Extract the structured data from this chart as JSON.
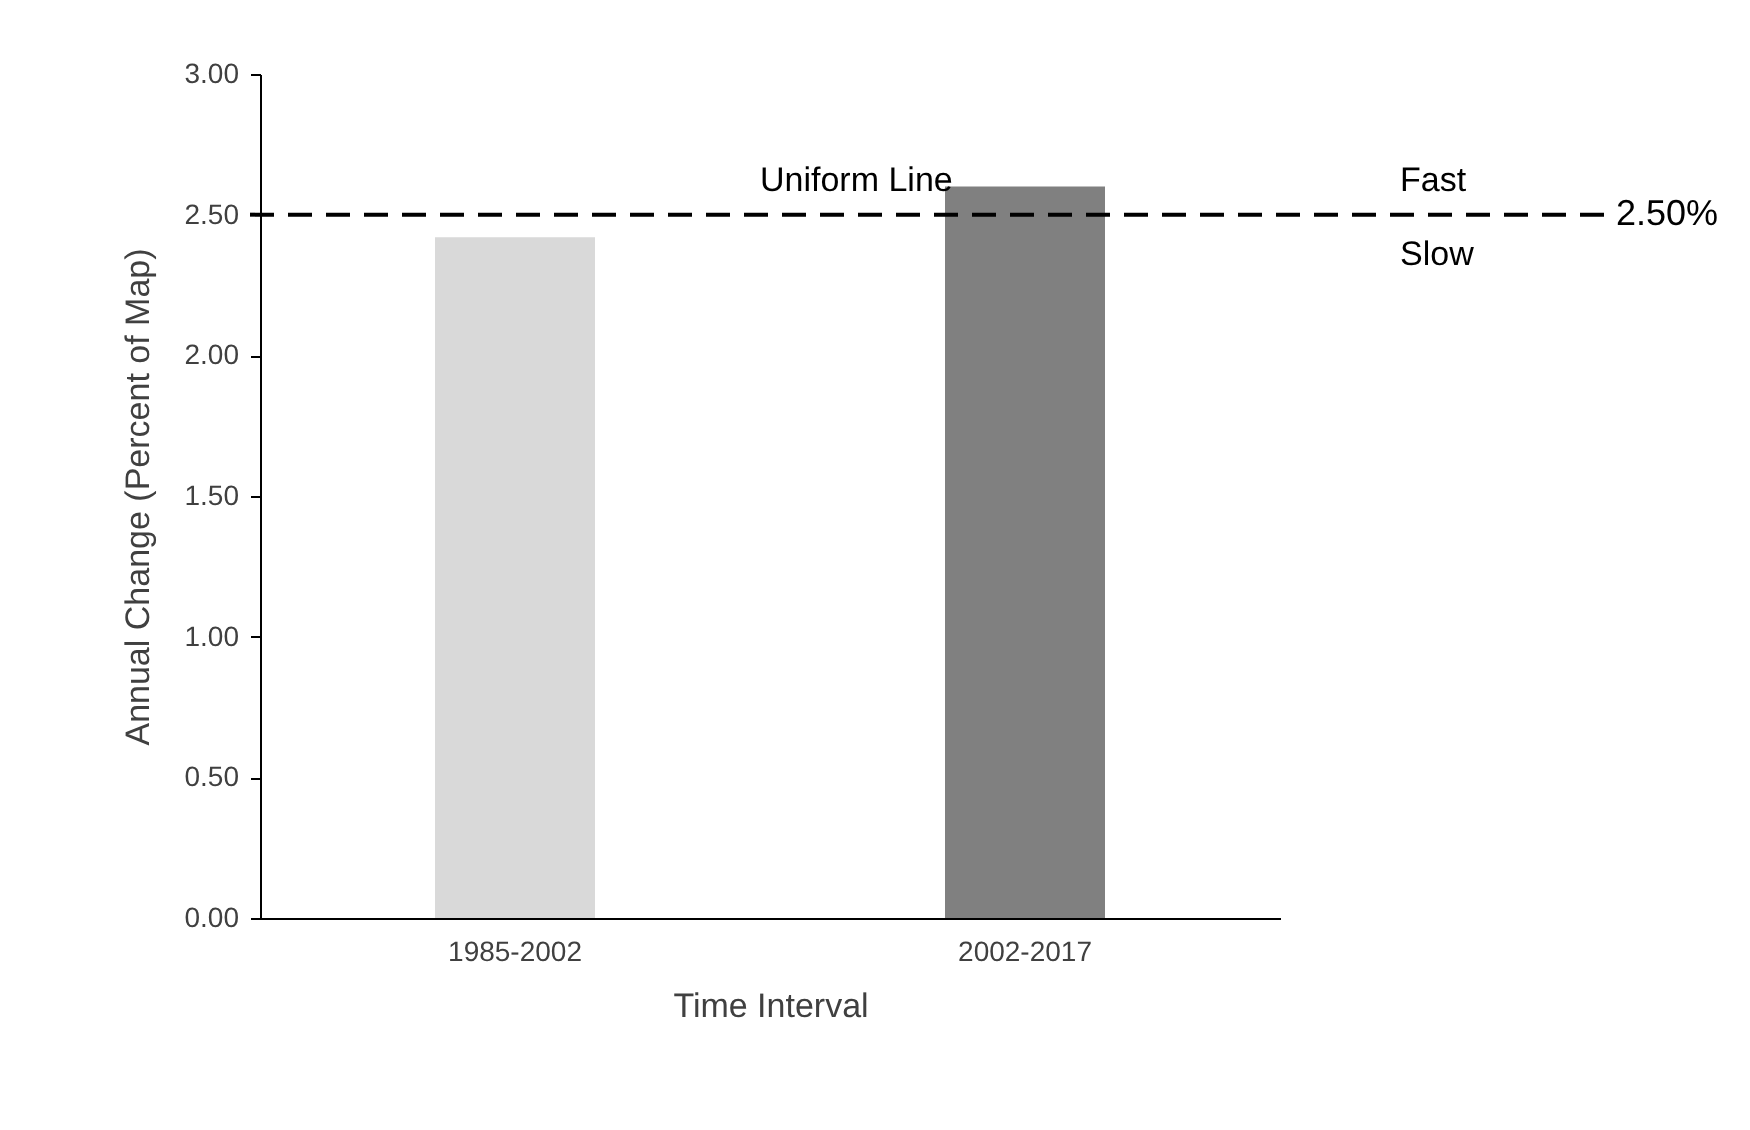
{
  "chart_data": {
    "type": "bar",
    "xlabel": "Time Interval",
    "ylabel": "Annual Change (Percent of Map)",
    "categories": [
      "1985-2002",
      "2002-2017"
    ],
    "values": [
      2.42,
      2.6
    ],
    "colors": [
      "#d9d9d9",
      "#808080"
    ],
    "ylim": [
      0,
      3
    ],
    "yticks": [
      {
        "value": 0,
        "label": "0.00"
      },
      {
        "value": 0.5,
        "label": "0.50"
      },
      {
        "value": 1,
        "label": "1.00"
      },
      {
        "value": 1.5,
        "label": "1.50"
      },
      {
        "value": 2,
        "label": "2.00"
      },
      {
        "value": 2.5,
        "label": "2.50"
      },
      {
        "value": 3,
        "label": "3.00"
      }
    ],
    "ref_lines": [
      {
        "axis": "y",
        "value": 2.5,
        "label": "2.50%",
        "color": "#000000",
        "line_style": "dashed"
      }
    ],
    "annotations": [
      "Uniform Line",
      "Fast",
      "Slow"
    ],
    "grid": false
  }
}
